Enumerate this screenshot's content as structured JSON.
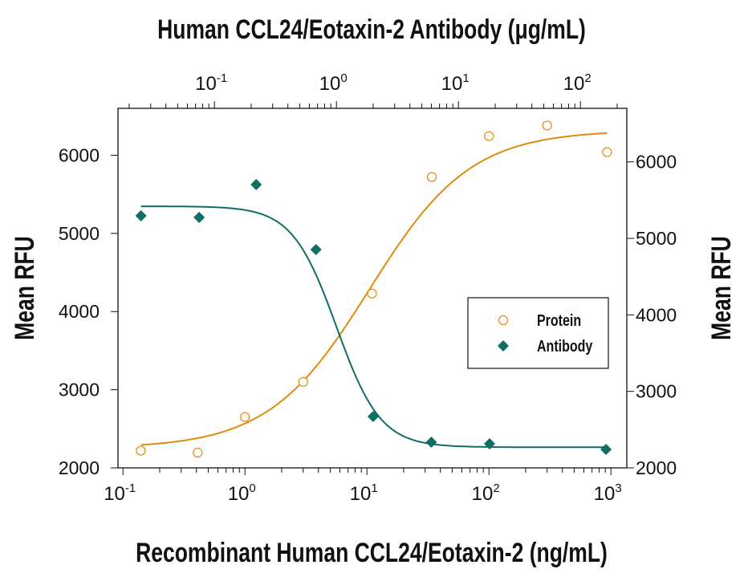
{
  "chart_data": {
    "type": "scatter",
    "title": "Human CCL24/Eotaxin-2 Antibody (μg/mL)",
    "xlabel": "Recombinant Human CCL24/Eotaxin-2 (ng/mL)",
    "x2label": "Human CCL24/Eotaxin-2 Antibody (μg/mL)",
    "ylabel": "Mean RFU",
    "y2label": "Mean RFU",
    "xscale": "log",
    "x2scale": "log",
    "xlim": [
      0.091,
      1350
    ],
    "x2lim": [
      0.0162,
      240
    ],
    "ylim": [
      2000,
      6600
    ],
    "y2lim": [
      2000,
      6700
    ],
    "xticks": [
      {
        "base": "10",
        "exp": "-1",
        "value": 0.1
      },
      {
        "base": "10",
        "exp": "0",
        "value": 1
      },
      {
        "base": "10",
        "exp": "1",
        "value": 10
      },
      {
        "base": "10",
        "exp": "2",
        "value": 100
      },
      {
        "base": "10",
        "exp": "3",
        "value": 1000
      }
    ],
    "x2ticks": [
      {
        "base": "10",
        "exp": "-1",
        "value": 0.1
      },
      {
        "base": "10",
        "exp": "0",
        "value": 1
      },
      {
        "base": "10",
        "exp": "1",
        "value": 10
      },
      {
        "base": "10",
        "exp": "2",
        "value": 100
      }
    ],
    "yticks": [
      "2000",
      "3000",
      "4000",
      "5000",
      "6000"
    ],
    "y2ticks": [
      "2000",
      "3000",
      "4000",
      "5000",
      "6000"
    ],
    "grid": false,
    "legend_position": "center-right",
    "series": [
      {
        "name": "Protein",
        "axes": "bottom-left",
        "marker": "open-circle",
        "color": "#E08A10",
        "x": [
          0.14,
          0.41,
          1.0,
          3.0,
          11,
          34,
          100,
          300,
          930
        ],
        "y": [
          2220,
          2195,
          2650,
          3100,
          4230,
          5720,
          6245,
          6380,
          6040
        ],
        "fit": {
          "bottom": 2250,
          "top": 6320,
          "ec50": 10.5,
          "hill": 1.05
        }
      },
      {
        "name": "Antibody",
        "axes": "top-right",
        "marker": "filled-diamond",
        "color": "#0E6E66",
        "x": [
          0.025,
          0.075,
          0.22,
          0.68,
          2.0,
          6.0,
          18,
          162
        ],
        "y": [
          5295,
          5274,
          5704,
          4854,
          2672,
          2336,
          2315,
          2241
        ],
        "fit": {
          "bottom": 2270,
          "top": 5420,
          "ec50": 1.0,
          "hill": -2.4
        }
      }
    ]
  }
}
